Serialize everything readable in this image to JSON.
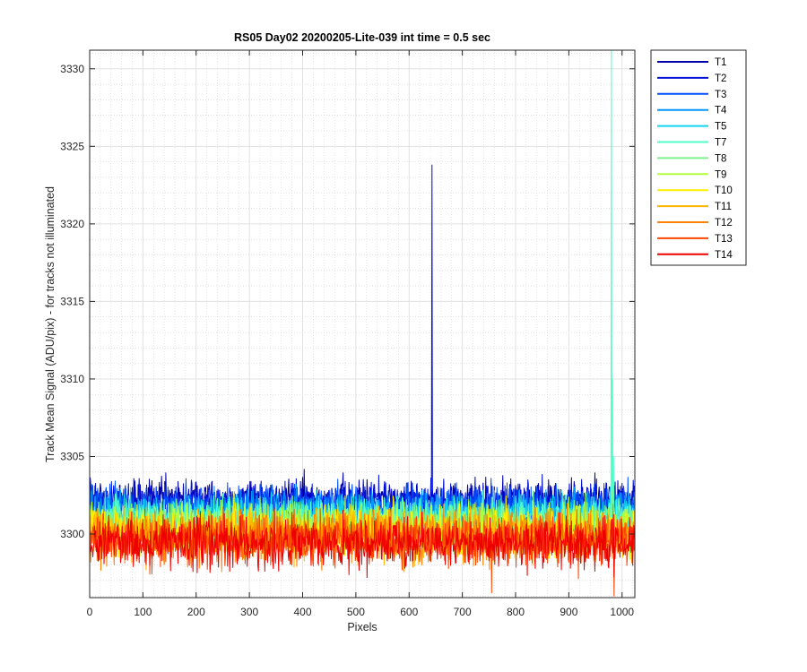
{
  "chart_data": {
    "type": "line",
    "title": "RS05 Day02 20200205-Lite-039 int time = 0.5 sec",
    "xlabel": "Pixels",
    "ylabel": "Track Mean Signal (ADU/pix) - for tracks not illuminated",
    "xlim": [
      0,
      1024
    ],
    "ylim": [
      3295.9,
      3331.2
    ],
    "xticks": [
      0,
      100,
      200,
      300,
      400,
      500,
      600,
      700,
      800,
      900,
      1000
    ],
    "yticks": [
      3300,
      3305,
      3310,
      3315,
      3320,
      3325,
      3330
    ],
    "grid": "major and minor",
    "legend_position": "outside top-right",
    "pixel_count": 1024,
    "series": [
      {
        "name": "T1",
        "color": "#0000AA",
        "mean": 3302.2,
        "noise": 0.65
      },
      {
        "name": "T2",
        "color": "#0010D9",
        "mean": 3302.0,
        "noise": 0.65,
        "spikes": [
          {
            "x": 643,
            "y": 3323.8
          }
        ]
      },
      {
        "name": "T3",
        "color": "#0050FF",
        "mean": 3301.8,
        "noise": 0.65
      },
      {
        "name": "T4",
        "color": "#0096FF",
        "mean": 3301.5,
        "noise": 0.65
      },
      {
        "name": "T5",
        "color": "#12D3F0",
        "mean": 3301.2,
        "noise": 0.65
      },
      {
        "name": "T7",
        "color": "#50FFC8",
        "mean": 3301.0,
        "noise": 0.65,
        "spikes": [
          {
            "x": 980,
            "y": 3331.2
          },
          {
            "x": 982,
            "y": 3310.0
          },
          {
            "x": 984,
            "y": 3305.0
          }
        ]
      },
      {
        "name": "T8",
        "color": "#7DF08C",
        "mean": 3300.7,
        "noise": 0.7
      },
      {
        "name": "T9",
        "color": "#B4FF3C",
        "mean": 3300.5,
        "noise": 0.75
      },
      {
        "name": "T10",
        "color": "#FFF000",
        "mean": 3300.2,
        "noise": 0.8
      },
      {
        "name": "T11",
        "color": "#FFB400",
        "mean": 3300.0,
        "noise": 0.8
      },
      {
        "name": "T12",
        "color": "#FF8200",
        "mean": 3299.8,
        "noise": 0.8
      },
      {
        "name": "T13",
        "color": "#FF4600",
        "mean": 3299.6,
        "noise": 0.8,
        "spikes": [
          {
            "x": 755,
            "y": 3296.2
          },
          {
            "x": 985,
            "y": 3296.0
          }
        ]
      },
      {
        "name": "T14",
        "color": "#EE0000",
        "mean": 3299.4,
        "noise": 0.8
      }
    ]
  }
}
